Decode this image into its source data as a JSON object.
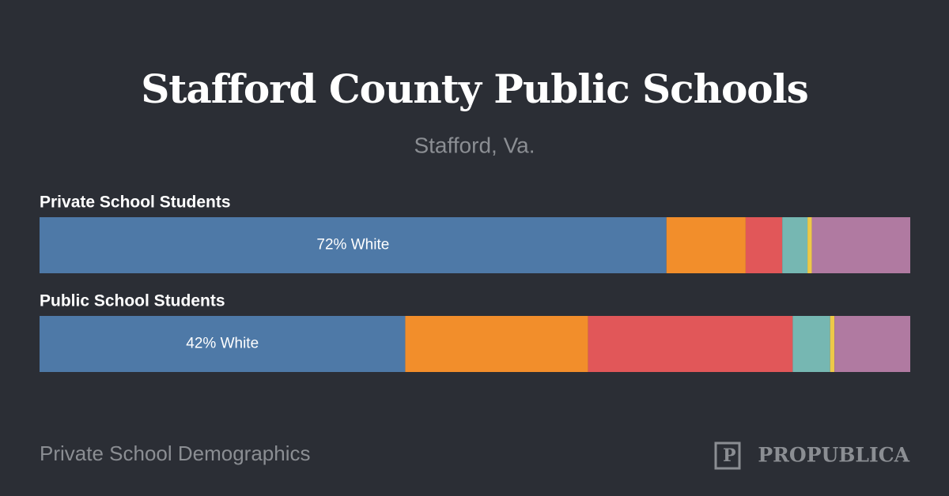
{
  "chart_data": {
    "type": "stacked-bar-horizontal",
    "title": "Stafford County Public Schools",
    "subtitle": "Stafford, Va.",
    "categories": [
      "Private School Students",
      "Public School Students"
    ],
    "xlim": [
      0,
      100
    ],
    "series": [
      {
        "color": "#4e79a7",
        "values": [
          72,
          42
        ],
        "value_labels": [
          "72% White",
          "42% White"
        ]
      },
      {
        "color": "#f28e2b",
        "values": [
          9.1,
          21
        ]
      },
      {
        "color": "#e15759",
        "values": [
          4.2,
          23.5
        ]
      },
      {
        "color": "#76b7b2",
        "values": [
          2.9,
          4.3
        ]
      },
      {
        "color": "#edc948",
        "values": [
          0.5,
          0.5
        ]
      },
      {
        "color": "#b07aa1",
        "values": [
          11.3,
          8.7
        ]
      }
    ]
  },
  "footer": {
    "text": "Private School Demographics",
    "brand": "PROPUBLICA"
  }
}
